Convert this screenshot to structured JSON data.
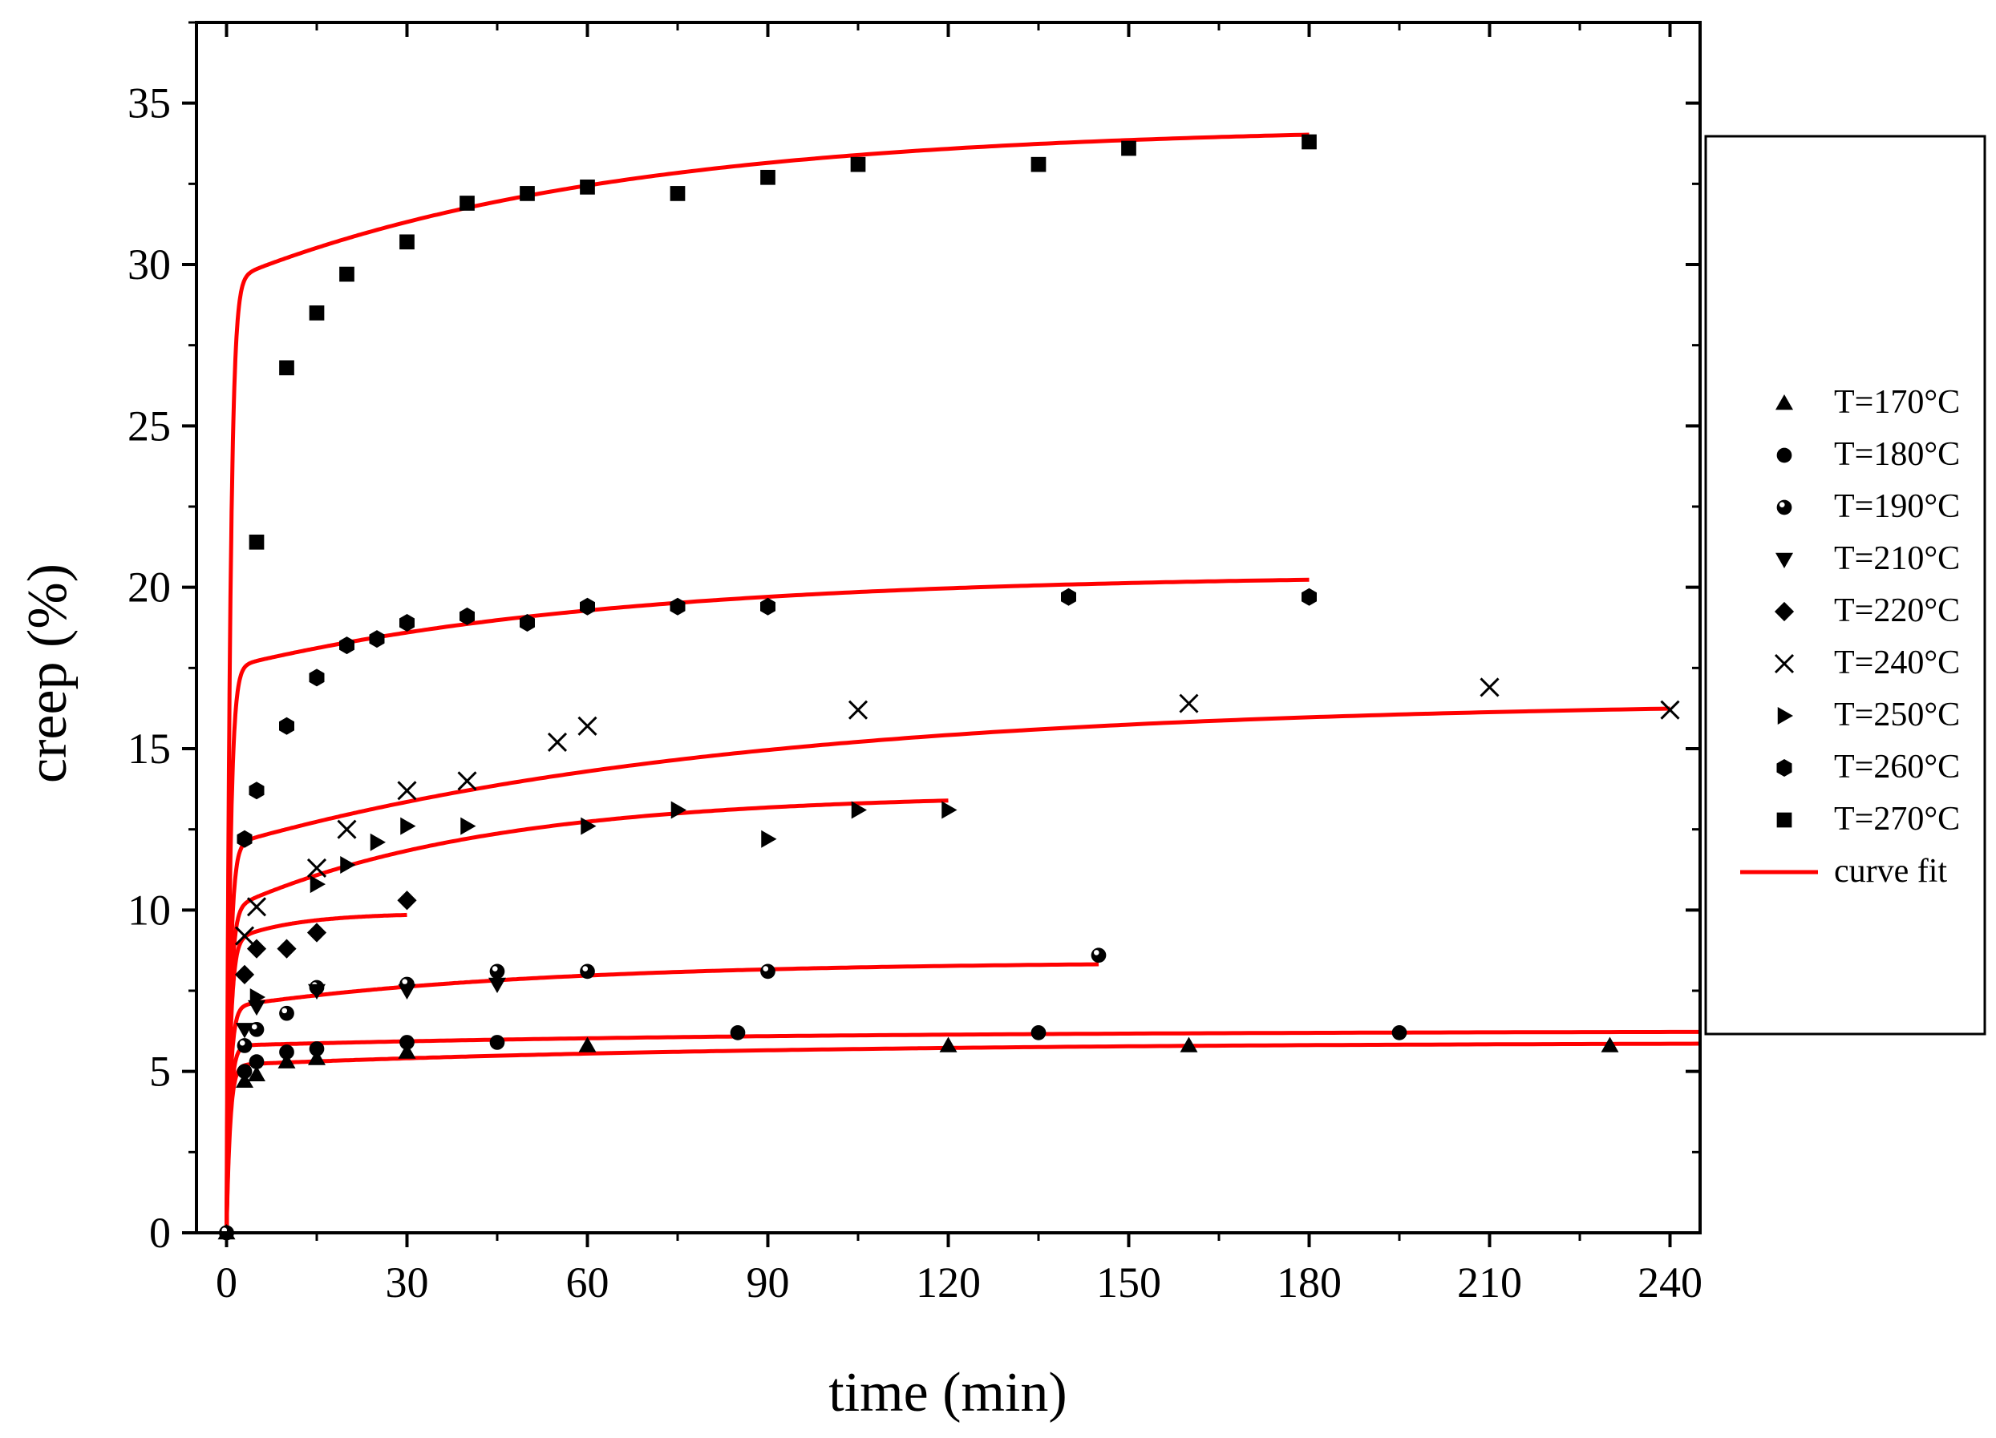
{
  "chart_data": {
    "type": "scatter",
    "title": "",
    "xlabel": "time (min)",
    "ylabel": "creep (%)",
    "xlim": [
      -5,
      245
    ],
    "ylim": [
      0,
      37.5
    ],
    "xticks": [
      "0",
      "30",
      "60",
      "90",
      "120",
      "150",
      "180",
      "210",
      "240"
    ],
    "yticks": [
      "0",
      "5",
      "10",
      "15",
      "20",
      "25",
      "30",
      "35"
    ],
    "legend_position": "right",
    "colors": {
      "fit": "#ff0000",
      "marker": "#000000"
    },
    "series": [
      {
        "name": "T=170",
        "unit": "°C",
        "marker": "triangle-up",
        "x": [
          0,
          3,
          5,
          10,
          15,
          30,
          60,
          120,
          160,
          230
        ],
        "y": [
          0,
          4.7,
          4.9,
          5.3,
          5.4,
          5.6,
          5.8,
          5.8,
          5.8,
          5.8
        ]
      },
      {
        "name": "T=180",
        "unit": "°C",
        "marker": "circle",
        "x": [
          0,
          3,
          5,
          10,
          15,
          30,
          45,
          85,
          135,
          195
        ],
        "y": [
          0,
          5.0,
          5.3,
          5.6,
          5.7,
          5.9,
          5.9,
          6.2,
          6.2,
          6.2
        ]
      },
      {
        "name": "T=190",
        "unit": "°C",
        "marker": "circle-half",
        "x": [
          0,
          3,
          5,
          10,
          15,
          30,
          45,
          60,
          90,
          145
        ],
        "y": [
          0,
          5.8,
          6.3,
          6.8,
          7.6,
          7.7,
          8.1,
          8.1,
          8.1,
          8.6
        ]
      },
      {
        "name": "T=210",
        "unit": "°C",
        "marker": "triangle-down",
        "x": [
          3,
          5,
          15,
          30,
          45
        ],
        "y": [
          6.3,
          7.0,
          7.5,
          7.5,
          7.7
        ]
      },
      {
        "name": "T=220",
        "unit": "°C",
        "marker": "diamond",
        "x": [
          3,
          5,
          10,
          15,
          30
        ],
        "y": [
          8.0,
          8.8,
          8.8,
          9.3,
          10.3
        ]
      },
      {
        "name": "T=240",
        "unit": "°C",
        "marker": "x",
        "x": [
          3,
          5,
          15,
          20,
          30,
          40,
          55,
          60,
          105,
          160,
          210,
          240
        ],
        "y": [
          9.2,
          10.1,
          11.3,
          12.5,
          13.7,
          14.0,
          15.2,
          15.7,
          16.2,
          16.4,
          16.9,
          16.2
        ]
      },
      {
        "name": "T=250",
        "unit": "°C",
        "marker": "triangle-right",
        "x": [
          5,
          15,
          20,
          25,
          30,
          40,
          60,
          75,
          90,
          105,
          120
        ],
        "y": [
          7.3,
          10.8,
          11.4,
          12.1,
          12.6,
          12.6,
          12.6,
          13.1,
          12.2,
          13.1,
          13.1
        ]
      },
      {
        "name": "T=260",
        "unit": "°C",
        "marker": "hexagon",
        "x": [
          3,
          5,
          10,
          15,
          20,
          25,
          30,
          40,
          50,
          60,
          75,
          90,
          140,
          180
        ],
        "y": [
          12.2,
          13.7,
          15.7,
          17.2,
          18.2,
          18.4,
          18.9,
          19.1,
          18.9,
          19.4,
          19.4,
          19.4,
          19.7,
          19.7
        ]
      },
      {
        "name": "T=270",
        "unit": "°C",
        "marker": "square",
        "x": [
          5,
          10,
          15,
          20,
          30,
          40,
          50,
          60,
          75,
          90,
          105,
          135,
          150,
          180
        ],
        "y": [
          21.4,
          26.8,
          28.5,
          29.7,
          30.7,
          31.9,
          32.2,
          32.4,
          32.2,
          32.7,
          33.1,
          33.1,
          33.6,
          33.8
        ]
      }
    ],
    "fit_label": "curve fit",
    "fits": [
      {
        "name": "fit-170",
        "xmax": 245,
        "plateau": 5.9,
        "x0": 5.2,
        "tau": 1.5,
        "k": 0.001
      },
      {
        "name": "fit-180",
        "xmax": 245,
        "plateau": 6.25,
        "x0": 5.8,
        "tau": 1.5,
        "k": 0.001
      },
      {
        "name": "fit-190",
        "xmax": 145,
        "plateau": 8.4,
        "x0": 7.0,
        "tau": 2.0,
        "k": 0.00285
      },
      {
        "name": "fit-220",
        "xmax": 30,
        "plateau": 9.9,
        "x0": 9.0,
        "tau": 2.0,
        "k": 0.0275
      },
      {
        "name": "fit-250",
        "xmax": 120,
        "plateau": 13.6,
        "x0": 10.0,
        "tau": 4.0,
        "k": 0.005
      },
      {
        "name": "fit-240",
        "xmax": 240,
        "plateau": 16.5,
        "x0": 12.0,
        "tau": 4.0,
        "k": 0.0035
      },
      {
        "name": "fit-260",
        "xmax": 180,
        "plateau": 20.4,
        "x0": 17.5,
        "tau": 3.0,
        "k": 0.00385
      },
      {
        "name": "fit-270",
        "xmax": 180,
        "plateau": 34.3,
        "x0": 29.5,
        "tau": 3.0,
        "k": 0.00455
      }
    ]
  }
}
